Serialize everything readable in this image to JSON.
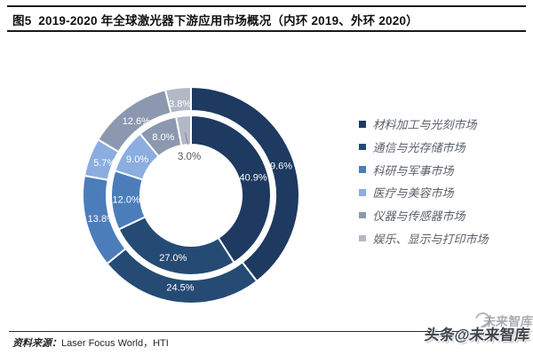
{
  "figure": {
    "title": "图5  2019-2020 年全球激光器下游应用市场概况（内环 2019、外环 2020）",
    "source_label": "资料来源：",
    "source_value": "Laser Focus World，HTI",
    "watermark_main": "头条@未来智库",
    "watermark_ghost": "未来智库"
  },
  "chart_data": {
    "type": "pie",
    "subtype": "double-ring-donut",
    "title": "2019-2020 年全球激光器下游应用市场概况（内环 2019、外环 2020）",
    "categories": [
      "材料加工与光刻市场",
      "通信与光存储市场",
      "科研与军事市场",
      "医疗与美容市场",
      "仪器与传感器市场",
      "娱乐、显示与打印市场"
    ],
    "series": [
      {
        "name": "2019（内环）",
        "ring": "inner",
        "values": [
          40.9,
          27.0,
          12.0,
          9.0,
          8.0,
          3.0
        ]
      },
      {
        "name": "2020（外环）",
        "ring": "outer",
        "values": [
          39.6,
          24.5,
          13.8,
          5.7,
          12.6,
          3.8
        ]
      }
    ],
    "colors": [
      "#1E3A60",
      "#254B74",
      "#4C7DBB",
      "#8BADDF",
      "#8C98AF",
      "#B2B8C5"
    ],
    "slice_label_color": "#FFFFFF",
    "callout_label_color": "#595959",
    "label_format": "percent-1dp",
    "start_angle_deg": 0,
    "direction": "clockwise",
    "legend_position": "right",
    "callout": {
      "series_index": 0,
      "slice_index": 5
    }
  }
}
